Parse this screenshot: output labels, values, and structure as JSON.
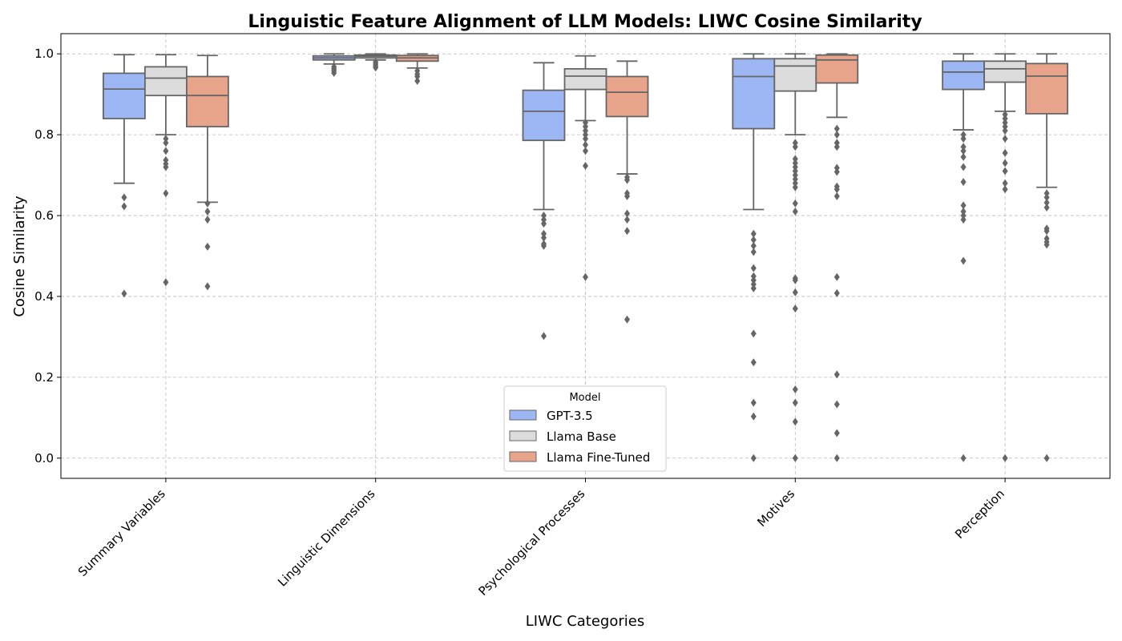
{
  "chart_data": {
    "type": "box",
    "title": "Linguistic Feature Alignment of LLM Models: LIWC Cosine Similarity",
    "xlabel": "LIWC Categories",
    "ylabel": "Cosine Similarity",
    "ylim": [
      -0.05,
      1.05
    ],
    "yticks": [
      "0.0",
      "0.2",
      "0.4",
      "0.6",
      "0.8",
      "1.0"
    ],
    "grid": true,
    "legend": {
      "title": "Model",
      "position": "bottom-center"
    },
    "categories": [
      "Summary Variables",
      "Linguistic Dimensions",
      "Psychological Processes",
      "Motives",
      "Perception"
    ],
    "series": [
      {
        "name": "GPT-3.5",
        "color": "#9db7f5",
        "boxes": [
          {
            "whislo": 0.68,
            "q1": 0.84,
            "median": 0.913,
            "q3": 0.952,
            "whishi": 0.998,
            "fliers": [
              0.645,
              0.623,
              0.407
            ]
          },
          {
            "whislo": 0.975,
            "q1": 0.985,
            "median": 0.99,
            "q3": 0.995,
            "whishi": 1.0,
            "fliers": [
              0.968,
              0.963,
              0.958,
              0.953
            ]
          },
          {
            "whislo": 0.615,
            "q1": 0.786,
            "median": 0.858,
            "q3": 0.91,
            "whishi": 0.978,
            "fliers": [
              0.6,
              0.59,
              0.58,
              0.555,
              0.545,
              0.53,
              0.525,
              0.302
            ]
          },
          {
            "whislo": 0.615,
            "q1": 0.815,
            "median": 0.944,
            "q3": 0.988,
            "whishi": 1.0,
            "fliers": [
              0.555,
              0.54,
              0.525,
              0.51,
              0.47,
              0.45,
              0.44,
              0.43,
              0.42,
              0.308,
              0.237,
              0.137,
              0.103,
              0.0
            ]
          },
          {
            "whislo": 0.812,
            "q1": 0.912,
            "median": 0.955,
            "q3": 0.982,
            "whishi": 1.0,
            "fliers": [
              0.8,
              0.79,
              0.77,
              0.76,
              0.745,
              0.72,
              0.683,
              0.625,
              0.61,
              0.6,
              0.59,
              0.488,
              0.0
            ]
          }
        ]
      },
      {
        "name": "Llama Base",
        "color": "#dcdcdc",
        "boxes": [
          {
            "whislo": 0.8,
            "q1": 0.897,
            "median": 0.94,
            "q3": 0.968,
            "whishi": 0.998,
            "fliers": [
              0.79,
              0.78,
              0.76,
              0.737,
              0.728,
              0.72,
              0.655,
              0.435
            ]
          },
          {
            "whislo": 0.985,
            "q1": 0.99,
            "median": 0.994,
            "q3": 0.997,
            "whishi": 1.0,
            "fliers": [
              0.98,
              0.975,
              0.97,
              0.966
            ]
          },
          {
            "whislo": 0.835,
            "q1": 0.912,
            "median": 0.945,
            "q3": 0.963,
            "whishi": 0.995,
            "fliers": [
              0.83,
              0.82,
              0.81,
              0.8,
              0.79,
              0.775,
              0.76,
              0.723,
              0.448
            ]
          },
          {
            "whislo": 0.8,
            "q1": 0.908,
            "median": 0.97,
            "q3": 0.988,
            "whishi": 1.0,
            "fliers": [
              0.78,
              0.77,
              0.74,
              0.73,
              0.72,
              0.71,
              0.7,
              0.69,
              0.68,
              0.67,
              0.63,
              0.61,
              0.445,
              0.44,
              0.41,
              0.37,
              0.17,
              0.137,
              0.09,
              0.0
            ]
          },
          {
            "whislo": 0.858,
            "q1": 0.93,
            "median": 0.963,
            "q3": 0.982,
            "whishi": 1.0,
            "fliers": [
              0.85,
              0.84,
              0.83,
              0.82,
              0.81,
              0.79,
              0.755,
              0.73,
              0.71,
              0.68,
              0.665,
              0.0
            ]
          }
        ]
      },
      {
        "name": "Llama Fine-Tuned",
        "color": "#e8a48a",
        "boxes": [
          {
            "whislo": 0.633,
            "q1": 0.82,
            "median": 0.897,
            "q3": 0.944,
            "whishi": 0.996,
            "fliers": [
              0.63,
              0.61,
              0.59,
              0.523,
              0.425
            ]
          },
          {
            "whislo": 0.965,
            "q1": 0.982,
            "median": 0.99,
            "q3": 0.996,
            "whishi": 1.0,
            "fliers": [
              0.958,
              0.95,
              0.944,
              0.933
            ]
          },
          {
            "whislo": 0.703,
            "q1": 0.845,
            "median": 0.905,
            "q3": 0.944,
            "whishi": 0.982,
            "fliers": [
              0.695,
              0.688,
              0.655,
              0.648,
              0.605,
              0.59,
              0.562,
              0.343
            ]
          },
          {
            "whislo": 0.843,
            "q1": 0.928,
            "median": 0.985,
            "q3": 0.997,
            "whishi": 1.0,
            "fliers": [
              0.815,
              0.8,
              0.78,
              0.77,
              0.718,
              0.708,
              0.672,
              0.665,
              0.648,
              0.448,
              0.408,
              0.207,
              0.133,
              0.062,
              0.0
            ]
          },
          {
            "whislo": 0.67,
            "q1": 0.852,
            "median": 0.945,
            "q3": 0.976,
            "whishi": 1.0,
            "fliers": [
              0.655,
              0.645,
              0.632,
              0.62,
              0.568,
              0.562,
              0.543,
              0.535,
              0.528,
              0.0
            ]
          }
        ]
      }
    ],
    "style": {
      "box_edge": "#666666",
      "flier_color": "#666666",
      "grid_color": "#bbbbbb"
    }
  }
}
